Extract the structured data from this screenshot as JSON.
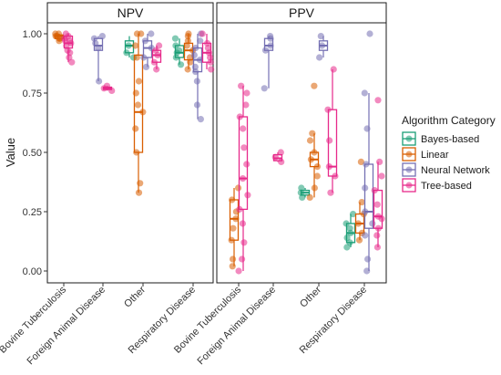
{
  "chart_data": {
    "type": "box",
    "ylabel": "Value",
    "ylim": [
      0,
      1.05
    ],
    "y_ticks": [
      "0.00",
      "0.25",
      "0.50",
      "0.75",
      "1.00"
    ],
    "grid": false,
    "legend_position": "right",
    "legend_title": "Algorithm Category",
    "categories": [
      "Bovine Tuberculosis",
      "Foreign Animal Disease",
      "Other",
      "Respiratory Disease"
    ],
    "series": [
      {
        "name": "Bayes-based",
        "color": "#1b9e77"
      },
      {
        "name": "Linear",
        "color": "#d95f02"
      },
      {
        "name": "Neural Network",
        "color": "#7570b3"
      },
      {
        "name": "Tree-based",
        "color": "#e7298a"
      }
    ],
    "facets": [
      {
        "label": "NPV",
        "boxes": [
          {
            "category": "Bovine Tuberculosis",
            "series": "Linear",
            "min": 0.97,
            "q1": 0.98,
            "median": 0.99,
            "q3": 0.995,
            "max": 1.0,
            "points": [
              0.97,
              0.98,
              0.99,
              0.99,
              1.0,
              0.98,
              1.0
            ]
          },
          {
            "category": "Bovine Tuberculosis",
            "series": "Tree-based",
            "min": 0.88,
            "q1": 0.94,
            "median": 0.96,
            "q3": 0.99,
            "max": 1.0,
            "points": [
              0.88,
              0.9,
              0.93,
              0.95,
              0.96,
              0.97,
              0.98,
              0.99,
              1.0,
              0.92,
              0.97
            ]
          },
          {
            "category": "Foreign Animal Disease",
            "series": "Neural Network",
            "min": 0.8,
            "q1": 0.93,
            "median": 0.95,
            "q3": 0.98,
            "max": 0.99,
            "points": [
              0.8,
              0.94,
              0.96,
              0.98,
              0.99
            ]
          },
          {
            "category": "Foreign Animal Disease",
            "series": "Tree-based",
            "min": 0.76,
            "q1": 0.765,
            "median": 0.77,
            "q3": 0.775,
            "max": 0.78,
            "points": [
              0.76,
              0.77,
              0.78
            ]
          },
          {
            "category": "Other",
            "series": "Bayes-based",
            "min": 0.9,
            "q1": 0.92,
            "median": 0.95,
            "q3": 0.97,
            "max": 0.99,
            "points": [
              0.9,
              0.92,
              0.95
            ]
          },
          {
            "category": "Other",
            "series": "Linear",
            "min": 0.33,
            "q1": 0.5,
            "median": 0.67,
            "q3": 0.91,
            "max": 1.0,
            "points": [
              0.33,
              0.37,
              0.5,
              0.6,
              0.67,
              0.7,
              0.75,
              0.8,
              0.9,
              0.95,
              1.0,
              1.0
            ]
          },
          {
            "category": "Other",
            "series": "Neural Network",
            "min": 0.86,
            "q1": 0.9,
            "median": 0.94,
            "q3": 0.97,
            "max": 1.0,
            "points": [
              0.86,
              0.9,
              0.94,
              0.97,
              1.0
            ]
          },
          {
            "category": "Other",
            "series": "Tree-based",
            "min": 0.85,
            "q1": 0.88,
            "median": 0.91,
            "q3": 0.93,
            "max": 0.95,
            "points": [
              0.85,
              0.88,
              0.91,
              0.93,
              0.95
            ]
          },
          {
            "category": "Respiratory Disease",
            "series": "Bayes-based",
            "min": 0.87,
            "q1": 0.9,
            "median": 0.92,
            "q3": 0.95,
            "max": 0.98,
            "points": [
              0.87,
              0.9,
              0.92,
              0.93,
              0.95,
              0.98
            ]
          },
          {
            "category": "Respiratory Disease",
            "series": "Linear",
            "min": 0.85,
            "q1": 0.89,
            "median": 0.93,
            "q3": 0.96,
            "max": 1.0,
            "points": [
              0.85,
              0.88,
              0.9,
              0.93,
              0.95,
              0.97,
              1.0,
              0.99
            ]
          },
          {
            "category": "Respiratory Disease",
            "series": "Neural Network",
            "min": 0.64,
            "q1": 0.84,
            "median": 0.89,
            "q3": 0.94,
            "max": 1.0,
            "points": [
              0.64,
              0.7,
              0.8,
              0.84,
              0.86,
              0.89,
              0.91,
              0.94,
              0.97,
              1.0
            ]
          },
          {
            "category": "Respiratory Disease",
            "series": "Tree-based",
            "min": 0.85,
            "q1": 0.88,
            "median": 0.92,
            "q3": 0.96,
            "max": 1.0,
            "points": [
              0.85,
              0.88,
              0.9,
              0.92,
              0.94,
              0.96,
              1.0
            ]
          }
        ]
      },
      {
        "label": "PPV",
        "boxes": [
          {
            "category": "Bovine Tuberculosis",
            "series": "Linear",
            "min": 0.02,
            "q1": 0.13,
            "median": 0.22,
            "q3": 0.3,
            "max": 0.35,
            "points": [
              0.02,
              0.05,
              0.13,
              0.18,
              0.22,
              0.25,
              0.3,
              0.35
            ]
          },
          {
            "category": "Bovine Tuberculosis",
            "series": "Tree-based",
            "min": 0.0,
            "q1": 0.26,
            "median": 0.39,
            "q3": 0.65,
            "max": 0.78,
            "points": [
              0.0,
              0.05,
              0.12,
              0.2,
              0.26,
              0.32,
              0.39,
              0.45,
              0.52,
              0.6,
              0.65,
              0.7,
              0.75,
              0.78
            ]
          },
          {
            "category": "Foreign Animal Disease",
            "series": "Neural Network",
            "min": 0.77,
            "q1": 0.93,
            "median": 0.95,
            "q3": 0.98,
            "max": 0.99,
            "points": [
              0.77,
              0.93,
              0.95,
              0.98,
              0.99
            ]
          },
          {
            "category": "Foreign Animal Disease",
            "series": "Tree-based",
            "min": 0.46,
            "q1": 0.465,
            "median": 0.475,
            "q3": 0.49,
            "max": 0.5,
            "points": [
              0.46,
              0.48,
              0.5
            ]
          },
          {
            "category": "Other",
            "series": "Bayes-based",
            "min": 0.31,
            "q1": 0.32,
            "median": 0.33,
            "q3": 0.34,
            "max": 0.35,
            "points": [
              0.31,
              0.33,
              0.35
            ]
          },
          {
            "category": "Other",
            "series": "Linear",
            "min": 0.31,
            "q1": 0.44,
            "median": 0.47,
            "q3": 0.5,
            "max": 0.58,
            "points": [
              0.31,
              0.35,
              0.4,
              0.44,
              0.47,
              0.5,
              0.55,
              0.58,
              0.78
            ]
          },
          {
            "category": "Other",
            "series": "Neural Network",
            "min": 0.9,
            "q1": 0.93,
            "median": 0.95,
            "q3": 0.97,
            "max": 0.99,
            "points": [
              0.9,
              0.95,
              0.99
            ]
          },
          {
            "category": "Other",
            "series": "Tree-based",
            "min": 0.33,
            "q1": 0.4,
            "median": 0.44,
            "q3": 0.68,
            "max": 0.85,
            "points": [
              0.33,
              0.4,
              0.44,
              0.55,
              0.68,
              0.85
            ]
          },
          {
            "category": "Respiratory Disease",
            "series": "Bayes-based",
            "min": 0.1,
            "q1": 0.12,
            "median": 0.16,
            "q3": 0.2,
            "max": 0.24,
            "points": [
              0.1,
              0.12,
              0.14,
              0.16,
              0.18,
              0.2,
              0.24
            ]
          },
          {
            "category": "Respiratory Disease",
            "series": "Linear",
            "min": 0.13,
            "q1": 0.16,
            "median": 0.2,
            "q3": 0.24,
            "max": 0.29,
            "points": [
              0.13,
              0.16,
              0.2,
              0.24,
              0.29,
              0.46
            ]
          },
          {
            "category": "Respiratory Disease",
            "series": "Neural Network",
            "min": 0.0,
            "q1": 0.18,
            "median": 0.25,
            "q3": 0.45,
            "max": 0.75,
            "points": [
              0.0,
              0.05,
              0.15,
              0.2,
              0.25,
              0.35,
              0.45,
              0.6,
              0.75,
              1.0
            ]
          },
          {
            "category": "Respiratory Disease",
            "series": "Tree-based",
            "min": 0.1,
            "q1": 0.18,
            "median": 0.23,
            "q3": 0.34,
            "max": 0.46,
            "points": [
              0.1,
              0.15,
              0.18,
              0.22,
              0.23,
              0.28,
              0.34,
              0.4,
              0.46,
              0.72
            ]
          }
        ]
      }
    ]
  }
}
